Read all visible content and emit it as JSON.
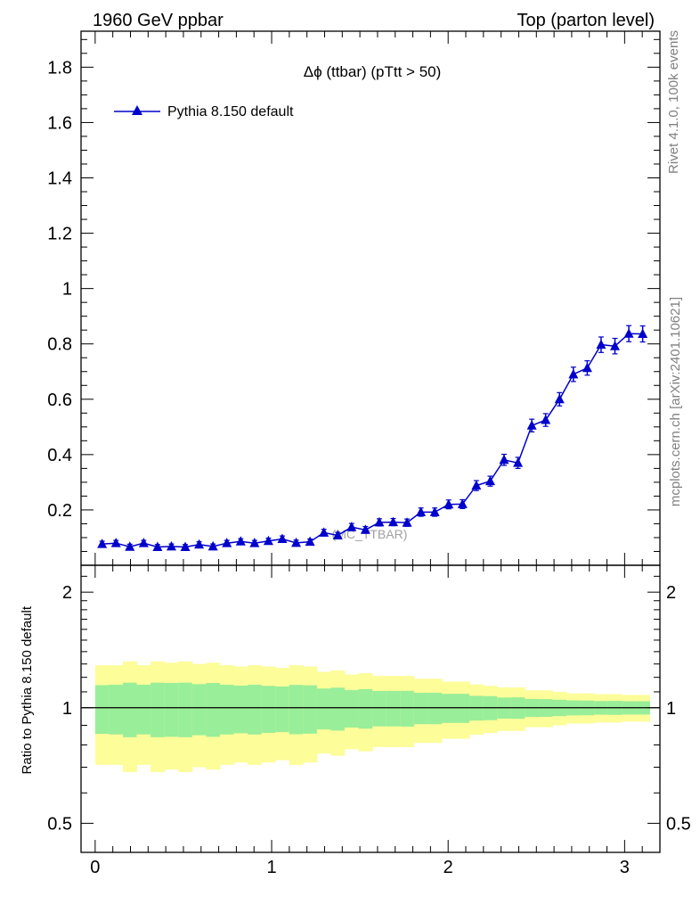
{
  "header": {
    "left": "1960 GeV ppbar",
    "right": "Top (parton level)"
  },
  "side_labels": {
    "rivet": "Rivet 4.1.0,  100k events",
    "mcplots": "mcplots.cern.ch [arXiv:2401.10621]"
  },
  "watermark": "(MC_TTBAR)",
  "colors": {
    "series": "#0000cc",
    "band_inner": "#99ee99",
    "band_outer": "#fdfd99",
    "watermark": "#a0a0a0",
    "side_text": "#808080"
  },
  "chart_data": [
    {
      "type": "line",
      "title": "Δϕ (ttbar) (pTtt > 50)",
      "xlabel": "",
      "ylabel": "",
      "xlim": [
        -0.08,
        3.2
      ],
      "ylim": [
        0,
        1.93
      ],
      "yticks": [
        0.2,
        0.4,
        0.6,
        0.8,
        1,
        1.2,
        1.4,
        1.6,
        1.8
      ],
      "yticklabels": [
        "0.2",
        "0.4",
        "0.6",
        "0.8",
        "1",
        "1.2",
        "1.4",
        "1.6",
        "1.8"
      ],
      "legend": {
        "position": "top-left",
        "entries": [
          "Pythia 8.150 default"
        ]
      },
      "series": [
        {
          "name": "Pythia 8.150 default",
          "marker": "triangle",
          "x": [
            0.0393,
            0.1178,
            0.1963,
            0.2749,
            0.3534,
            0.432,
            0.5105,
            0.589,
            0.6676,
            0.7461,
            0.8247,
            0.9032,
            0.9817,
            1.0603,
            1.1388,
            1.2174,
            1.2959,
            1.3744,
            1.453,
            1.5315,
            1.6101,
            1.6886,
            1.7671,
            1.8457,
            1.9242,
            2.0028,
            2.0813,
            2.1598,
            2.2384,
            2.3169,
            2.3955,
            2.474,
            2.5525,
            2.6311,
            2.7096,
            2.7882,
            2.8667,
            2.9452,
            3.0238,
            3.1023
          ],
          "y": [
            0.077,
            0.08,
            0.067,
            0.08,
            0.066,
            0.068,
            0.066,
            0.075,
            0.068,
            0.08,
            0.086,
            0.08,
            0.088,
            0.095,
            0.081,
            0.085,
            0.118,
            0.108,
            0.138,
            0.128,
            0.155,
            0.156,
            0.154,
            0.192,
            0.192,
            0.22,
            0.221,
            0.288,
            0.304,
            0.381,
            0.37,
            0.505,
            0.525,
            0.6,
            0.69,
            0.713,
            0.797,
            0.792,
            0.837,
            0.836
          ],
          "yerr": [
            0.01,
            0.01,
            0.009,
            0.01,
            0.009,
            0.009,
            0.009,
            0.01,
            0.009,
            0.01,
            0.01,
            0.01,
            0.01,
            0.011,
            0.01,
            0.01,
            0.012,
            0.011,
            0.013,
            0.012,
            0.013,
            0.013,
            0.013,
            0.015,
            0.015,
            0.016,
            0.016,
            0.018,
            0.018,
            0.02,
            0.02,
            0.023,
            0.023,
            0.024,
            0.026,
            0.026,
            0.028,
            0.028,
            0.029,
            0.029
          ]
        }
      ]
    },
    {
      "type": "area",
      "title": "",
      "xlabel": "",
      "ylabel": "Ratio to Pythia 8.150 default",
      "xlim": [
        -0.08,
        3.2
      ],
      "ylim": [
        0.42,
        2.35
      ],
      "yscale": "log",
      "yticks": [
        0.5,
        1,
        2
      ],
      "yticklabels": [
        "0.5",
        "1",
        "2"
      ],
      "xticks": [
        0,
        1,
        2,
        3
      ],
      "xticklabels": [
        "0",
        "1",
        "2",
        "3"
      ],
      "x_edges": [
        0,
        0.0785,
        0.1571,
        0.2356,
        0.3142,
        0.3927,
        0.4712,
        0.5498,
        0.6283,
        0.7069,
        0.7854,
        0.8639,
        0.9425,
        1.021,
        1.0996,
        1.1781,
        1.2566,
        1.3352,
        1.4137,
        1.4923,
        1.5708,
        1.6493,
        1.7279,
        1.8064,
        1.885,
        1.9635,
        2.042,
        2.1206,
        2.1991,
        2.2777,
        2.3562,
        2.4347,
        2.5133,
        2.5918,
        2.6704,
        2.7489,
        2.8274,
        2.906,
        2.9845,
        3.0631,
        3.1416
      ],
      "band_inner": [
        0.145,
        0.148,
        0.162,
        0.148,
        0.162,
        0.16,
        0.162,
        0.152,
        0.16,
        0.148,
        0.142,
        0.148,
        0.14,
        0.136,
        0.147,
        0.144,
        0.122,
        0.128,
        0.112,
        0.118,
        0.106,
        0.106,
        0.107,
        0.094,
        0.094,
        0.087,
        0.087,
        0.074,
        0.072,
        0.063,
        0.064,
        0.054,
        0.053,
        0.049,
        0.045,
        0.044,
        0.041,
        0.042,
        0.04,
        0.04
      ],
      "band_outer": [
        0.29,
        0.29,
        0.32,
        0.29,
        0.32,
        0.31,
        0.32,
        0.3,
        0.31,
        0.29,
        0.28,
        0.29,
        0.28,
        0.27,
        0.29,
        0.28,
        0.24,
        0.25,
        0.22,
        0.23,
        0.21,
        0.21,
        0.21,
        0.19,
        0.19,
        0.17,
        0.17,
        0.15,
        0.14,
        0.13,
        0.13,
        0.11,
        0.11,
        0.1,
        0.09,
        0.09,
        0.085,
        0.085,
        0.08,
        0.08
      ],
      "series": [
        {
          "name": "Pythia 8.150 default",
          "values": [
            1.0,
            1.0
          ]
        }
      ]
    }
  ]
}
